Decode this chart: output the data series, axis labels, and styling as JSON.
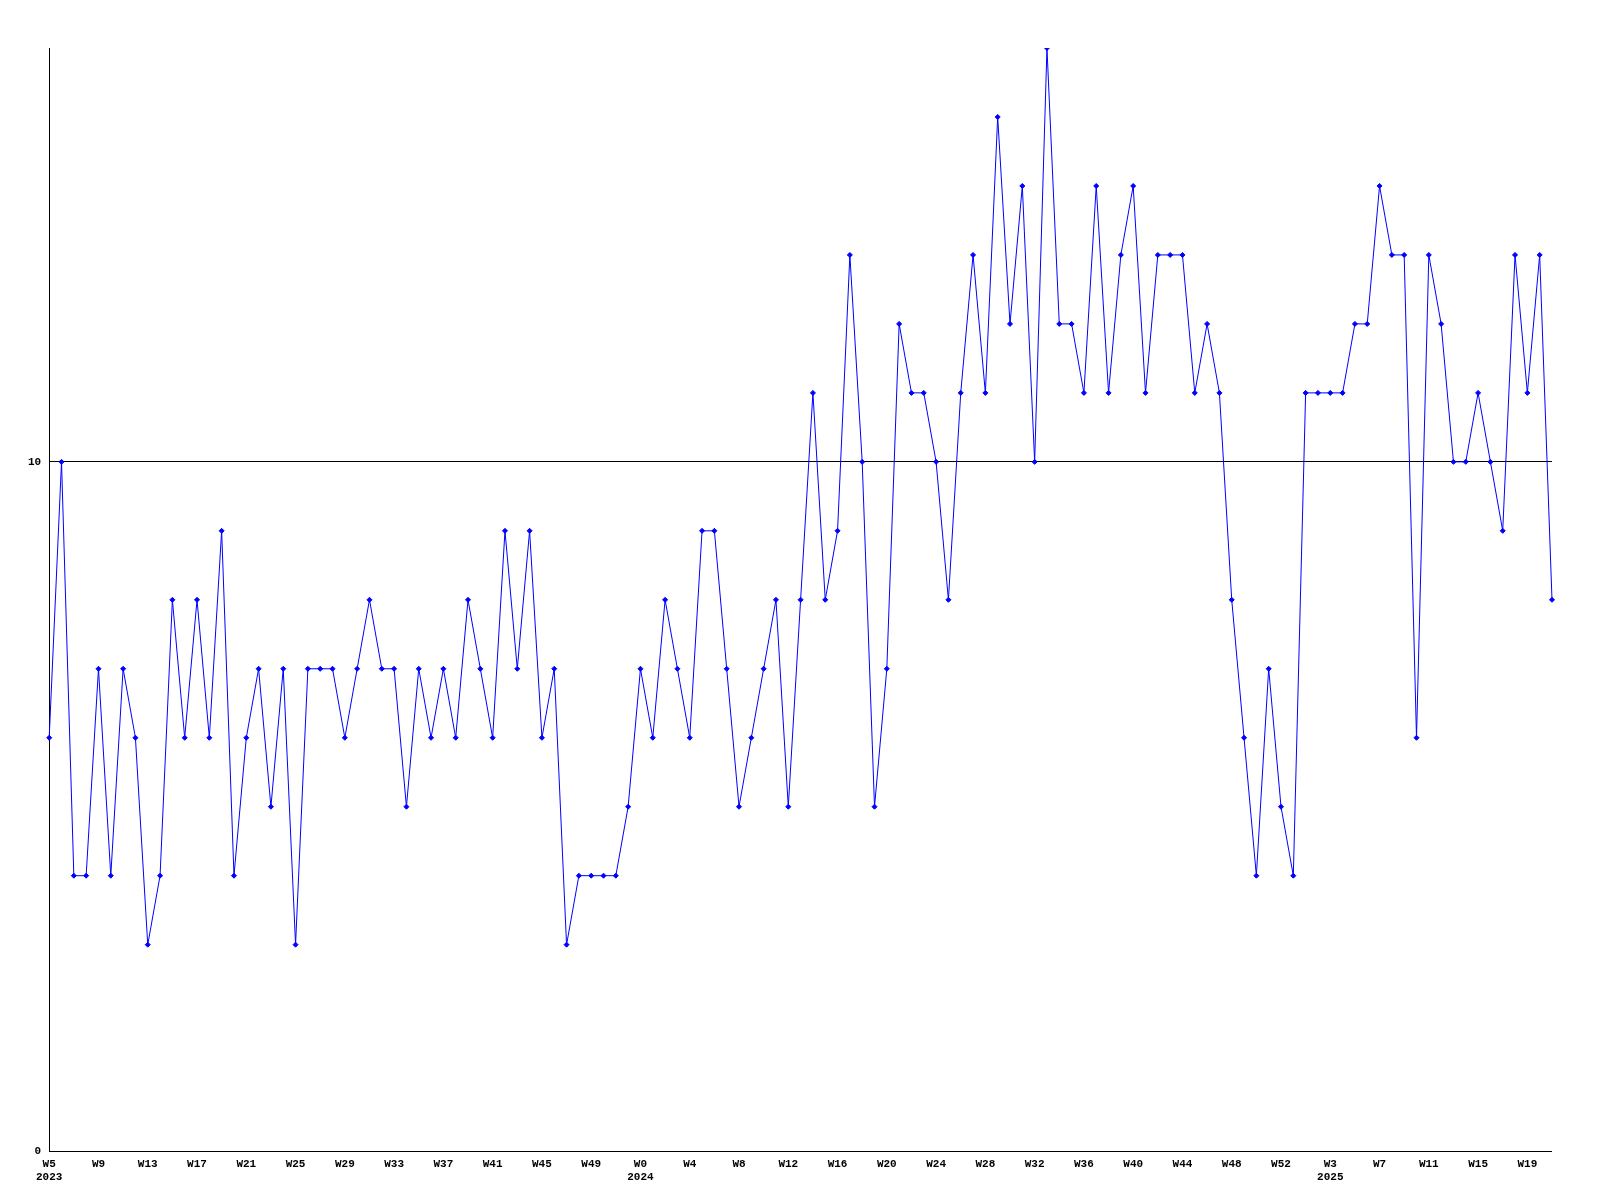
{
  "chart_data": {
    "type": "line",
    "categories": [
      "W5\n2023",
      null,
      null,
      null,
      "W9",
      null,
      null,
      null,
      "W13",
      null,
      null,
      null,
      "W17",
      null,
      null,
      null,
      "W21",
      null,
      null,
      null,
      "W25",
      null,
      null,
      null,
      "W29",
      null,
      null,
      null,
      "W33",
      null,
      null,
      null,
      "W37",
      null,
      null,
      null,
      "W41",
      null,
      null,
      null,
      "W45",
      null,
      null,
      null,
      "W49",
      null,
      null,
      null,
      "W0\n2024",
      null,
      null,
      null,
      "W4",
      null,
      null,
      null,
      "W8",
      null,
      null,
      null,
      "W12",
      null,
      null,
      null,
      "W16",
      null,
      null,
      null,
      "W20",
      null,
      null,
      null,
      "W24",
      null,
      null,
      null,
      "W28",
      null,
      null,
      null,
      "W32",
      null,
      null,
      null,
      "W36",
      null,
      null,
      null,
      "W40",
      null,
      null,
      null,
      "W44",
      null,
      null,
      null,
      "W48",
      null,
      null,
      null,
      "W52",
      null,
      null,
      null,
      "W3\n2025",
      null,
      null,
      null,
      "W7",
      null,
      null,
      null,
      "W11",
      null,
      null,
      null,
      "W15",
      null,
      null,
      null,
      "W19",
      null,
      null
    ],
    "series": [
      {
        "color": "#0000ff",
        "values": [
          6,
          10,
          4,
          4,
          7,
          4,
          7,
          6,
          3,
          4,
          8,
          6,
          8,
          6,
          9,
          4,
          6,
          7,
          5,
          7,
          3,
          7,
          7,
          7,
          6,
          7,
          8,
          7,
          7,
          5,
          7,
          6,
          7,
          6,
          8,
          7,
          6,
          9,
          7,
          9,
          6,
          7,
          3,
          4,
          4,
          4,
          4,
          5,
          7,
          6,
          8,
          7,
          6,
          9,
          9,
          7,
          5,
          6,
          7,
          8,
          5,
          8,
          11,
          8,
          9,
          13,
          10,
          5,
          7,
          12,
          11,
          11,
          10,
          8,
          11,
          13,
          11,
          15,
          12,
          14,
          10,
          16,
          12,
          12,
          11,
          14,
          11,
          13,
          14,
          11,
          13,
          13,
          13,
          11,
          12,
          11,
          8,
          6,
          4,
          7,
          5,
          4,
          11,
          11,
          11,
          11,
          12,
          12,
          14,
          13,
          13,
          6,
          13,
          12,
          10,
          10,
          11,
          10,
          9,
          13,
          11,
          13,
          8
        ]
      }
    ],
    "ylim": [
      0,
      16
    ],
    "yticks": [
      0,
      10
    ],
    "grid": "y",
    "marker": "diamond"
  }
}
